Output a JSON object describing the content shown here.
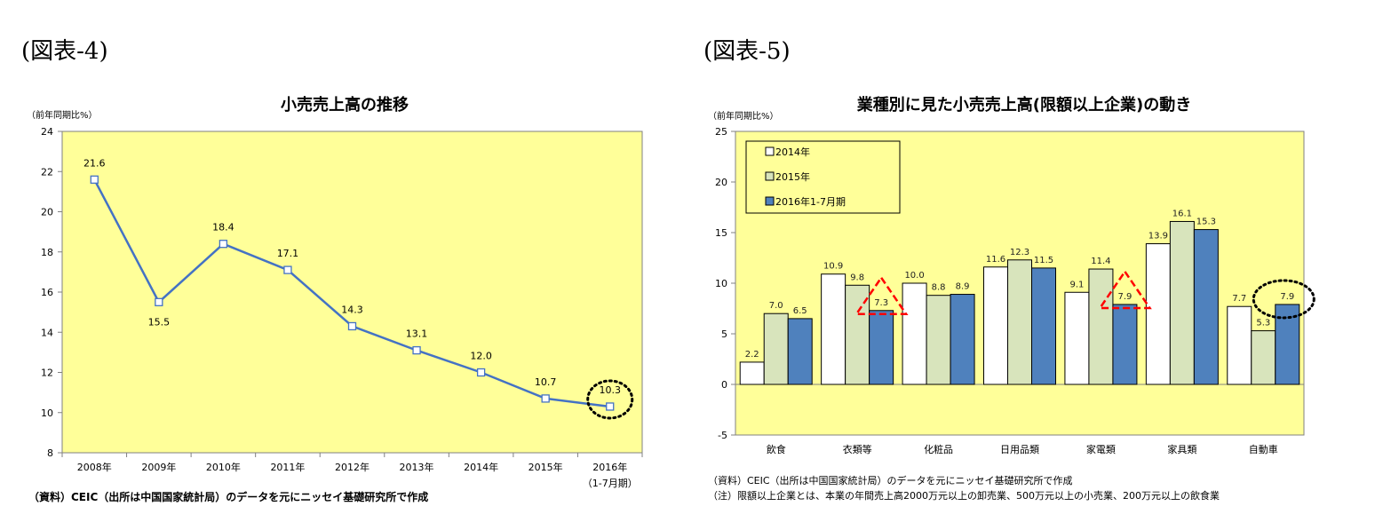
{
  "figure4": {
    "label": "(図表-4)",
    "source_note": "（資料）CEIC（出所は中国国家統計局）のデータを元にニッセイ基礎研究所で作成"
  },
  "figure5": {
    "label": "(図表-5)",
    "source_note": "（資料）CEIC（出所は中国国家統計局）のデータを元にニッセイ基礎研究所で作成",
    "definition_note": "（注）限額以上企業とは、本業の年間売上高2000万元以上の卸売業、500万元以上の小売業、200万元以上の飲食業"
  },
  "colors": {
    "plot_bg": "#FFFF99",
    "line": "#4472C4",
    "bar_2014": "#FFFFFF",
    "bar_2015": "#D8E4BC",
    "bar_2016": "#4F81BD",
    "highlight_circle": "#000000",
    "highlight_triangle": "#FF0000"
  },
  "chart_data": [
    {
      "type": "line",
      "title": "小売売上高の推移",
      "ylabel": "（前年同期比%）",
      "categories": [
        "2008年",
        "2009年",
        "2010年",
        "2011年",
        "2012年",
        "2013年",
        "2014年",
        "2015年",
        "2016年"
      ],
      "category_sublabels": [
        "",
        "",
        "",
        "",
        "",
        "",
        "",
        "",
        "（1-7月期）"
      ],
      "values": [
        21.6,
        15.5,
        18.4,
        17.1,
        14.3,
        13.1,
        12.0,
        10.7,
        10.3
      ],
      "ylim": [
        8,
        24
      ],
      "yticks": [
        8,
        10,
        12,
        14,
        16,
        18,
        20,
        22,
        24
      ],
      "grid": false,
      "marker": "square",
      "highlight": {
        "category": "2016年",
        "shape": "dotted-circle"
      }
    },
    {
      "type": "bar",
      "title": "業種別に見た小売売上高(限額以上企業)の動き",
      "ylabel": "（前年同期比%）",
      "categories": [
        "飲食",
        "衣類等",
        "化粧品",
        "日用品類",
        "家電類",
        "家具類",
        "自動車"
      ],
      "series": [
        {
          "name": "2014年",
          "values": [
            2.2,
            10.9,
            10.0,
            11.6,
            9.1,
            13.9,
            7.7
          ]
        },
        {
          "name": "2015年",
          "values": [
            7.0,
            9.8,
            8.8,
            12.3,
            11.4,
            16.1,
            5.3
          ]
        },
        {
          "name": "2016年1-7月期",
          "values": [
            6.5,
            7.3,
            8.9,
            11.5,
            7.9,
            15.3,
            7.9
          ]
        }
      ],
      "ylim": [
        -5,
        25
      ],
      "yticks": [
        -5,
        0,
        5,
        10,
        15,
        20,
        25
      ],
      "grid": false,
      "legend_position": "top-left",
      "highlights": [
        {
          "category": "衣類等",
          "series": "2016年1-7月期",
          "shape": "red-dashed-triangle"
        },
        {
          "category": "家電類",
          "series": "2016年1-7月期",
          "shape": "red-dashed-triangle"
        },
        {
          "category": "自動車",
          "series": "2016年1-7月期",
          "shape": "dotted-circle"
        }
      ]
    }
  ]
}
